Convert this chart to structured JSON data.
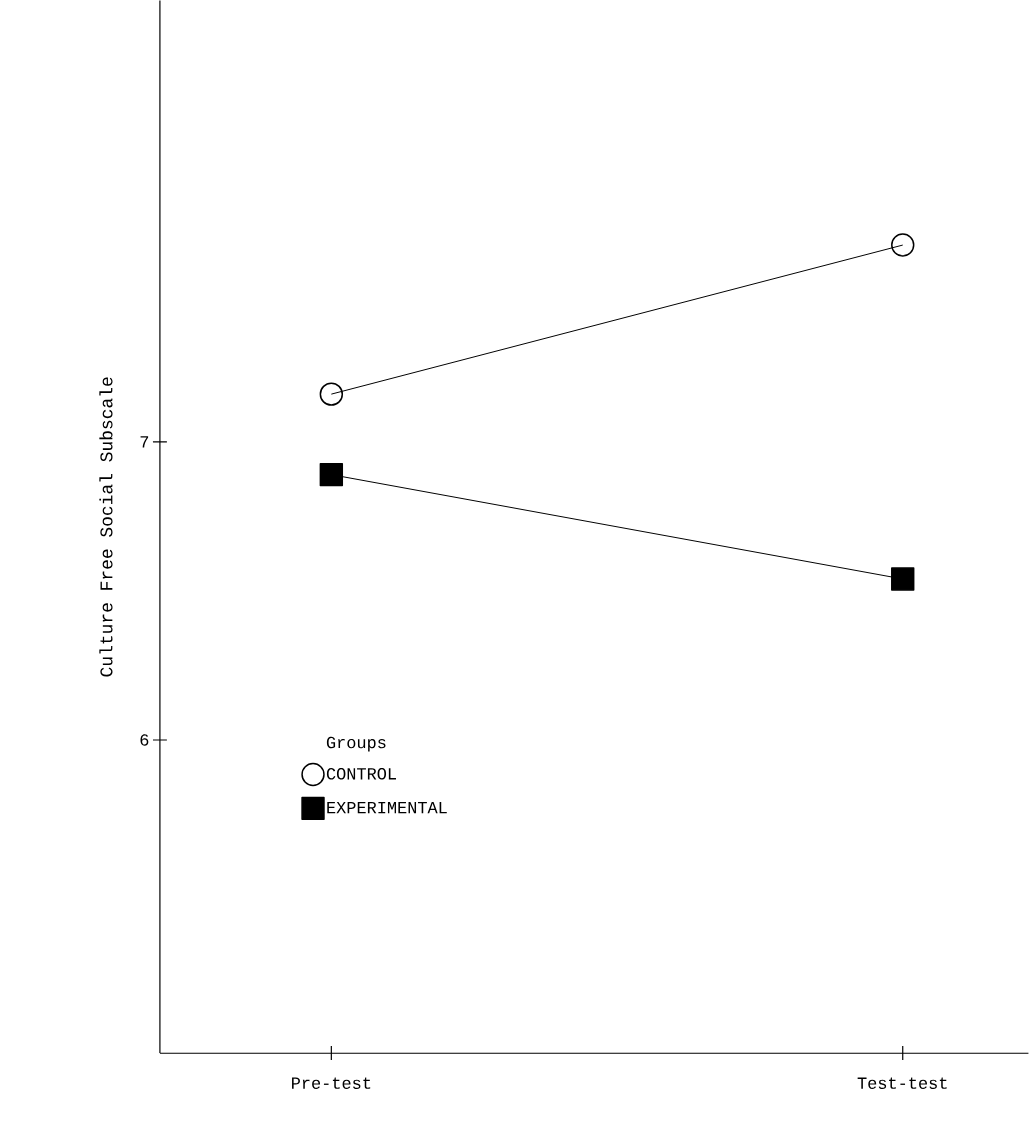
{
  "chart_data": {
    "type": "line",
    "ylabel": "Culture Free Social Subscale",
    "categories": [
      "Pre-test",
      "Test-test"
    ],
    "series": [
      {
        "name": "CONTROL",
        "color": "#000000",
        "marker": "circle",
        "values": [
          7.16,
          7.66
        ]
      },
      {
        "name": "EXPERIMENTAL",
        "color": "#000000",
        "marker": "square",
        "values": [
          6.89,
          6.54
        ]
      }
    ],
    "legend_title": "Groups",
    "legend": "bottom left",
    "ylim": [
      4.95,
      8.48
    ],
    "yticks": [
      6,
      7
    ],
    "line_style": "solid",
    "grid": false
  }
}
